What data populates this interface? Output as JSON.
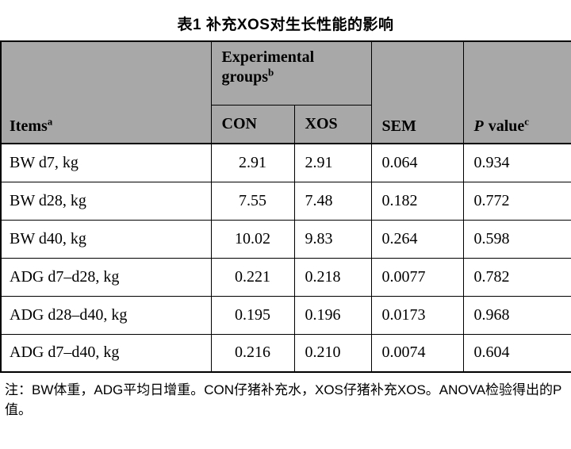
{
  "title": "表1 补充XOS对生长性能的影响",
  "table": {
    "header": {
      "items_label": "Items",
      "items_sup": "a",
      "group_label": "Experimental groups",
      "group_sup": "b",
      "con_label": "CON",
      "xos_label": "XOS",
      "sem_label": "SEM",
      "p_italic": "P",
      "p_rest": "value",
      "p_sup": "c"
    },
    "rows": [
      {
        "item": "BW d7, kg",
        "con": "2.91",
        "xos": "2.91",
        "sem": "0.064",
        "p": "0.934"
      },
      {
        "item": "BW d28, kg",
        "con": "7.55",
        "xos": "7.48",
        "sem": "0.182",
        "p": "0.772"
      },
      {
        "item": "BW d40, kg",
        "con": "10.02",
        "xos": "9.83",
        "sem": "0.264",
        "p": "0.598"
      },
      {
        "item": "ADG d7–d28, kg",
        "con": "0.221",
        "xos": "0.218",
        "sem": "0.0077",
        "p": "0.782"
      },
      {
        "item": "ADG d28–d40, kg",
        "con": "0.195",
        "xos": "0.196",
        "sem": "0.0173",
        "p": "0.968"
      },
      {
        "item": "ADG d7–d40, kg",
        "con": "0.216",
        "xos": "0.210",
        "sem": "0.0074",
        "p": "0.604"
      }
    ]
  },
  "footnote": "注：BW体重，ADG平均日增重。CON仔猪补充水，XOS仔猪补充XOS。ANOVA检验得出的P值。",
  "colors": {
    "header_bg": "#a8a8a8",
    "border": "#000000",
    "text": "#000000",
    "page_bg": "#ffffff"
  }
}
